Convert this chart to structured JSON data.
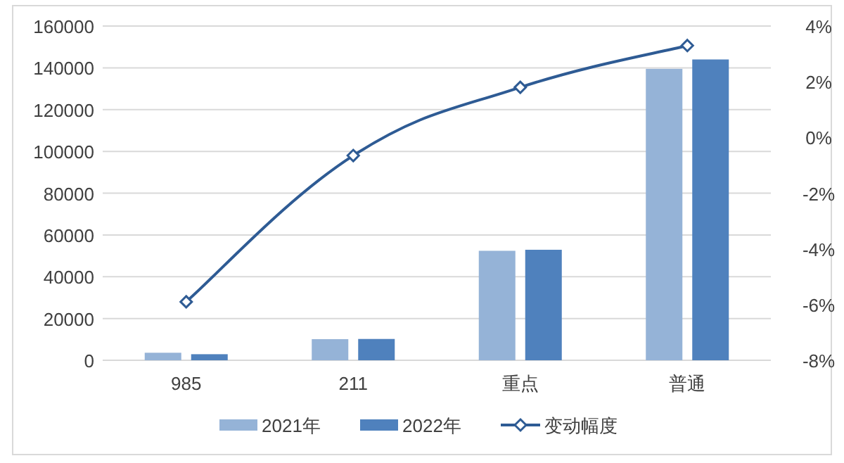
{
  "chart_data": {
    "type": "bar",
    "categories": [
      "985",
      "211",
      "重点",
      "普通"
    ],
    "series": [
      {
        "name": "2021年",
        "color": "#95b3d7",
        "values": [
          3600,
          10100,
          52400,
          139500
        ]
      },
      {
        "name": "2022年",
        "color": "#4f81bd",
        "values": [
          2900,
          10200,
          52900,
          144000
        ]
      },
      {
        "name": "变动幅度",
        "type": "line",
        "axis": "y2",
        "color": "#2e5b94",
        "marker": "diamond",
        "values": [
          -5.9,
          -0.65,
          1.8,
          3.3
        ]
      }
    ],
    "ylim": [
      0,
      160000
    ],
    "yticks": [
      0,
      20000,
      40000,
      60000,
      80000,
      100000,
      120000,
      140000,
      160000
    ],
    "y2lim": [
      -8,
      4
    ],
    "y2ticks": [
      {
        "value": -8,
        "label": "-8%"
      },
      {
        "value": -6,
        "label": "-6%"
      },
      {
        "value": -4,
        "label": "-4%"
      },
      {
        "value": -2,
        "label": "-2%"
      },
      {
        "value": 0,
        "label": "0%"
      },
      {
        "value": 2,
        "label": "2%"
      },
      {
        "value": 4,
        "label": "4%"
      }
    ],
    "grid": "y",
    "legend": "bottom"
  }
}
